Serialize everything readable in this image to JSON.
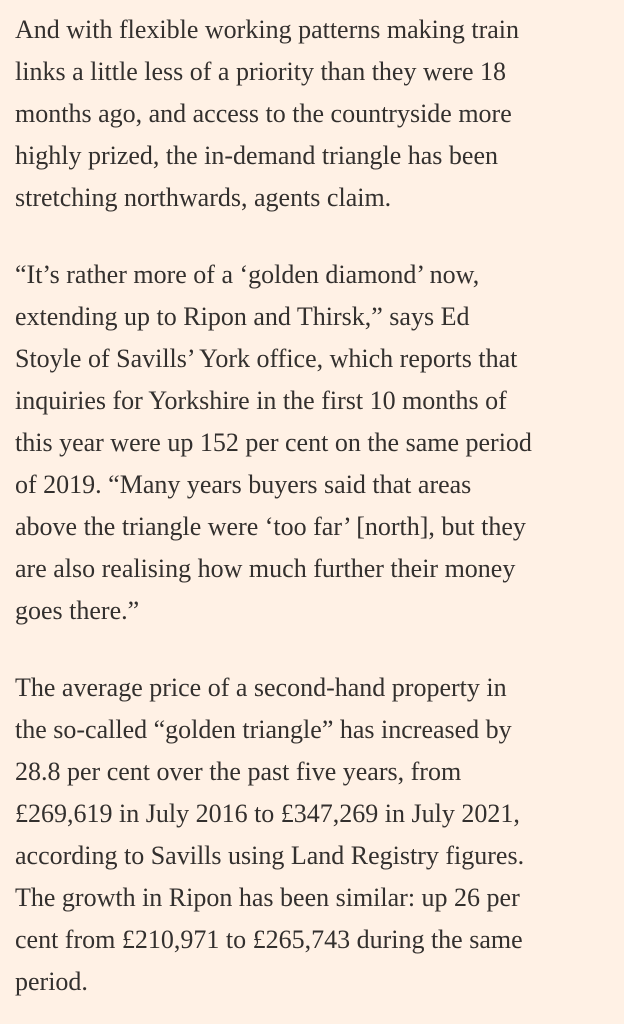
{
  "article": {
    "paragraphs": [
      [
        "And with flexible working patterns making train",
        "links a little less of a priority than they were 18",
        "months ago, and access to the countryside more",
        "highly prized, the in-demand triangle has been",
        "stretching northwards, agents claim."
      ],
      [
        "“It’s rather more of a ‘golden diamond’ now,",
        "extending up to Ripon and Thirsk,” says Ed",
        "Stoyle of Savills’ York office, which reports that",
        "inquiries for Yorkshire in the first 10 months of",
        "this year were up 152 per cent on the same period",
        "of 2019. “Many years buyers said that areas",
        "above the triangle were ‘too far’ [north], but they",
        "are also realising how much further their money",
        "goes there.”"
      ],
      [
        "The average price of a second-hand property in",
        "the so-called “golden triangle” has increased by",
        "28.8 per cent over the past five years, from",
        "£269,619 in July 2016 to £347,269 in July 2021,",
        "according to Savills using Land Registry figures.",
        "The growth in Ripon has been similar: up 26 per",
        "cent from £210,971 to £265,743 during the same",
        "period."
      ]
    ]
  }
}
